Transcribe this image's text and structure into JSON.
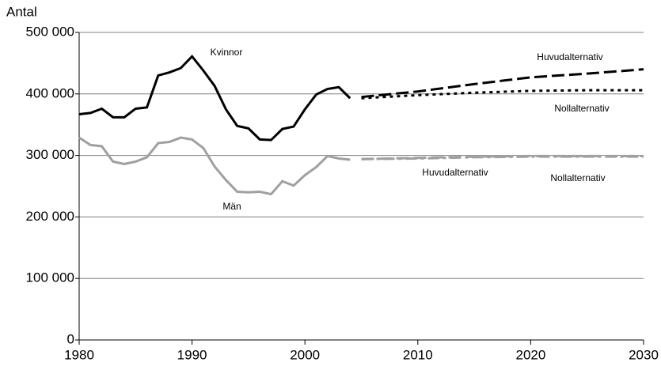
{
  "chart_data": {
    "type": "line",
    "y_label": "Antal",
    "xlim": [
      1980,
      2030
    ],
    "xticks": [
      1980,
      1990,
      2000,
      2010,
      2020,
      2030
    ],
    "ylim": [
      0,
      500000
    ],
    "yticks": [
      0,
      {
        "value": 100000,
        "label": "100 000"
      },
      {
        "value": 200000,
        "label": "200 000"
      },
      {
        "value": 300000,
        "label": "300 000"
      },
      {
        "value": 400000,
        "label": "400 000"
      },
      {
        "value": 500000,
        "label": "500 000"
      }
    ],
    "grid": true,
    "series": [
      {
        "name": "Kvinnor",
        "color": "#000000",
        "style": "solid",
        "x": [
          1980,
          1981,
          1982,
          1983,
          1984,
          1985,
          1986,
          1987,
          1988,
          1989,
          1990,
          1991,
          1992,
          1993,
          1994,
          1995,
          1996,
          1997,
          1998,
          1999,
          2000,
          2001,
          2002,
          2003,
          2004
        ],
        "values": [
          367000,
          369000,
          376000,
          362000,
          362000,
          376000,
          378000,
          430000,
          435000,
          442000,
          461000,
          438000,
          413000,
          375000,
          348000,
          344000,
          326000,
          325000,
          343000,
          347000,
          375000,
          399000,
          408000,
          411000,
          393000
        ]
      },
      {
        "name": "Män",
        "color": "#a0a0a0",
        "style": "solid",
        "x": [
          1980,
          1981,
          1982,
          1983,
          1984,
          1985,
          1986,
          1987,
          1988,
          1989,
          1990,
          1991,
          1992,
          1993,
          1994,
          1995,
          1996,
          1997,
          1998,
          1999,
          2000,
          2001,
          2002,
          2003,
          2004
        ],
        "values": [
          329000,
          317000,
          315000,
          290000,
          286000,
          290000,
          297000,
          320000,
          322000,
          329000,
          326000,
          312000,
          282000,
          260000,
          241000,
          240000,
          241000,
          237000,
          258000,
          251000,
          268000,
          281000,
          299000,
          295000,
          293000
        ]
      },
      {
        "name": "Huvudalternativ",
        "color": "#000000",
        "style": "dashed",
        "x": [
          2005,
          2010,
          2015,
          2020,
          2025,
          2030
        ],
        "values": [
          395000,
          404000,
          416000,
          427000,
          433000,
          440000
        ]
      },
      {
        "name": "Nollalternativ",
        "color": "#000000",
        "style": "dotted",
        "x": [
          2005,
          2010,
          2015,
          2020,
          2025,
          2030
        ],
        "values": [
          393000,
          398000,
          402000,
          405000,
          406000,
          406000
        ]
      },
      {
        "name": "Huvudalternativ",
        "color": "#a0a0a0",
        "style": "dashed",
        "x": [
          2005,
          2010,
          2015,
          2020,
          2025,
          2030
        ],
        "values": [
          294000,
          296000,
          298000,
          299000,
          299000,
          299000
        ]
      },
      {
        "name": "Nollalternativ",
        "color": "#a0a0a0",
        "style": "dashdot",
        "x": [
          2005,
          2010,
          2015,
          2020,
          2025,
          2030
        ],
        "values": [
          294000,
          295000,
          297000,
          298000,
          298000,
          298000
        ]
      }
    ]
  }
}
